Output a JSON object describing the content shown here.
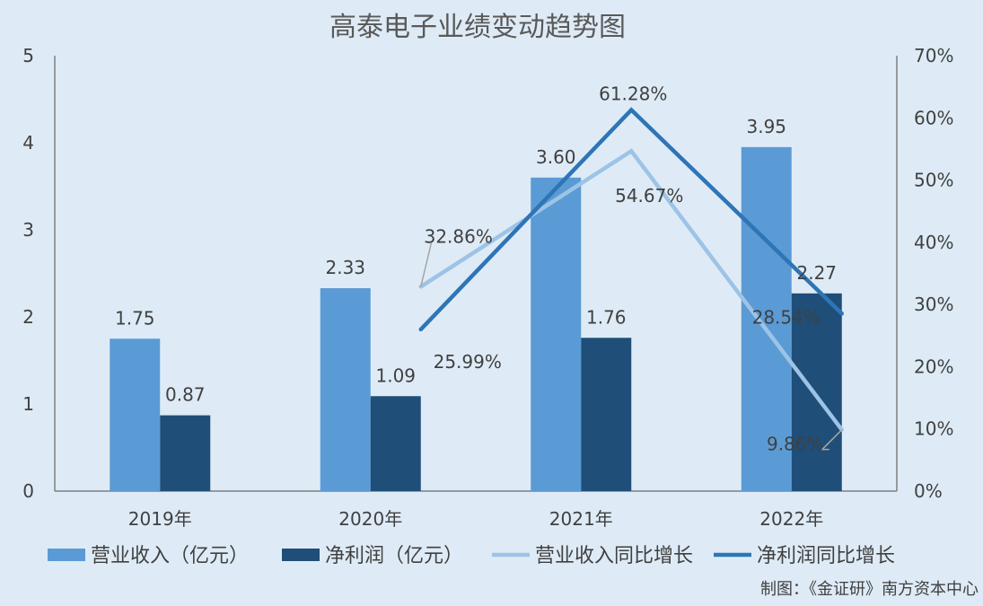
{
  "chart_data": {
    "type": "bar",
    "title": "高泰电子业绩变动趋势图",
    "categories": [
      "2019年",
      "2020年",
      "2021年",
      "2022年"
    ],
    "series": [
      {
        "name": "营业收入（亿元）",
        "kind": "bar",
        "axis": "left",
        "color": "#5b9bd5",
        "values": [
          1.75,
          2.33,
          3.6,
          3.95
        ],
        "labels": [
          "1.75",
          "2.33",
          "3.60",
          "3.95"
        ]
      },
      {
        "name": "净利润（亿元）",
        "kind": "bar",
        "axis": "left",
        "color": "#1f4e79",
        "values": [
          0.87,
          1.09,
          1.76,
          2.27
        ],
        "labels": [
          "0.87",
          "1.09",
          "1.76",
          "2.27"
        ]
      },
      {
        "name": "营业收入同比增长",
        "kind": "line",
        "axis": "right",
        "color": "#9dc3e6",
        "x": [
          "2020年",
          "2021年",
          "2022年"
        ],
        "values": [
          32.86,
          54.67,
          9.86
        ],
        "labels": [
          "32.86%",
          "54.67%",
          "9.86%"
        ]
      },
      {
        "name": "净利润同比增长",
        "kind": "line",
        "axis": "right",
        "color": "#2e75b6",
        "x": [
          "2020年",
          "2021年",
          "2022年"
        ],
        "values": [
          25.99,
          61.28,
          28.54
        ],
        "labels": [
          "25.99%",
          "61.28%",
          "28.54%"
        ]
      }
    ],
    "y_left": {
      "range": [
        0,
        5
      ],
      "ticks": [
        "0",
        "1",
        "2",
        "3",
        "4",
        "5"
      ]
    },
    "y_right": {
      "range": [
        0,
        70
      ],
      "ticks": [
        "0%",
        "10%",
        "20%",
        "30%",
        "40%",
        "50%",
        "60%",
        "70%"
      ]
    },
    "grid": false,
    "legend_position": "bottom"
  },
  "footer_source": "制图：《金证研》南方资本中心"
}
